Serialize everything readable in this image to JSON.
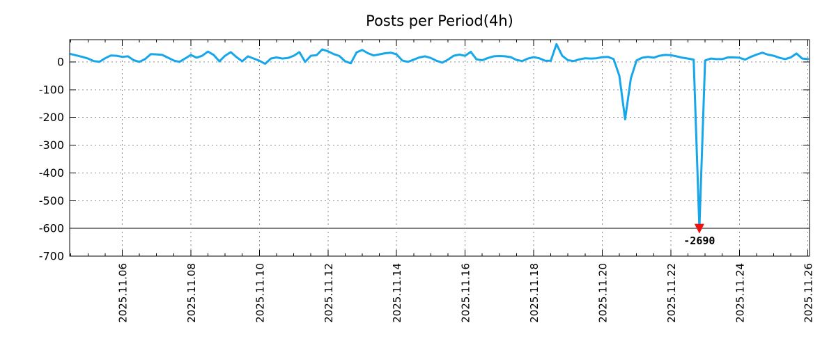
{
  "chart_data": {
    "type": "line",
    "title": "Posts per Period(4h)",
    "period_label": "4h",
    "x_start": "2025-11-04 12:00",
    "x_interval_hours": 4,
    "x_minor_tick_hours": 12,
    "x_major_tick_days": 2,
    "x_tick_labels": [
      "2025.11.06",
      "2025.11.08",
      "2025.11.10",
      "2025.11.12",
      "2025.11.14",
      "2025.11.16",
      "2025.11.18",
      "2025.11.20",
      "2025.11.22",
      "2025.11.24",
      "2025.11.26"
    ],
    "y_ticks": [
      0,
      -100,
      -200,
      -300,
      -400,
      -500,
      -600,
      -700
    ],
    "y_tick_labels": [
      "0",
      "-100",
      "-200",
      "-300",
      "-400",
      "-500",
      "-600",
      "-700"
    ],
    "ylim": [
      -700,
      80
    ],
    "grid": true,
    "legend": false,
    "clip_line_value": -600,
    "values": [
      28,
      23,
      18,
      12,
      3,
      0,
      13,
      23,
      22,
      18,
      20,
      6,
      0,
      10,
      28,
      27,
      25,
      15,
      5,
      0,
      12,
      25,
      15,
      22,
      37,
      25,
      2,
      22,
      35,
      17,
      2,
      20,
      12,
      4,
      -7,
      12,
      16,
      12,
      14,
      22,
      35,
      0,
      22,
      24,
      45,
      38,
      28,
      21,
      2,
      -5,
      34,
      43,
      31,
      23,
      27,
      31,
      33,
      27,
      5,
      0,
      8,
      16,
      20,
      14,
      4,
      -3,
      8,
      22,
      26,
      22,
      36,
      9,
      6,
      14,
      20,
      21,
      20,
      17,
      7,
      3,
      12,
      17,
      13,
      4,
      4,
      64,
      22,
      6,
      3,
      9,
      13,
      12,
      13,
      17,
      18,
      10,
      -50,
      -207,
      -60,
      5,
      15,
      18,
      15,
      22,
      25,
      24,
      20,
      15,
      12,
      8,
      -2690,
      5,
      12,
      10,
      10,
      16,
      16,
      15,
      8,
      18,
      26,
      33,
      26,
      22,
      15,
      10,
      16,
      30,
      12,
      10
    ],
    "min_annotation": {
      "index": 110,
      "value": -2690,
      "label": "-2690"
    },
    "series_color": "#16a6ea",
    "marker_color": "#ee1111",
    "grid_color": "#8c8c8c",
    "axis_color": "#000000",
    "title_color": "#1c1c1c"
  }
}
